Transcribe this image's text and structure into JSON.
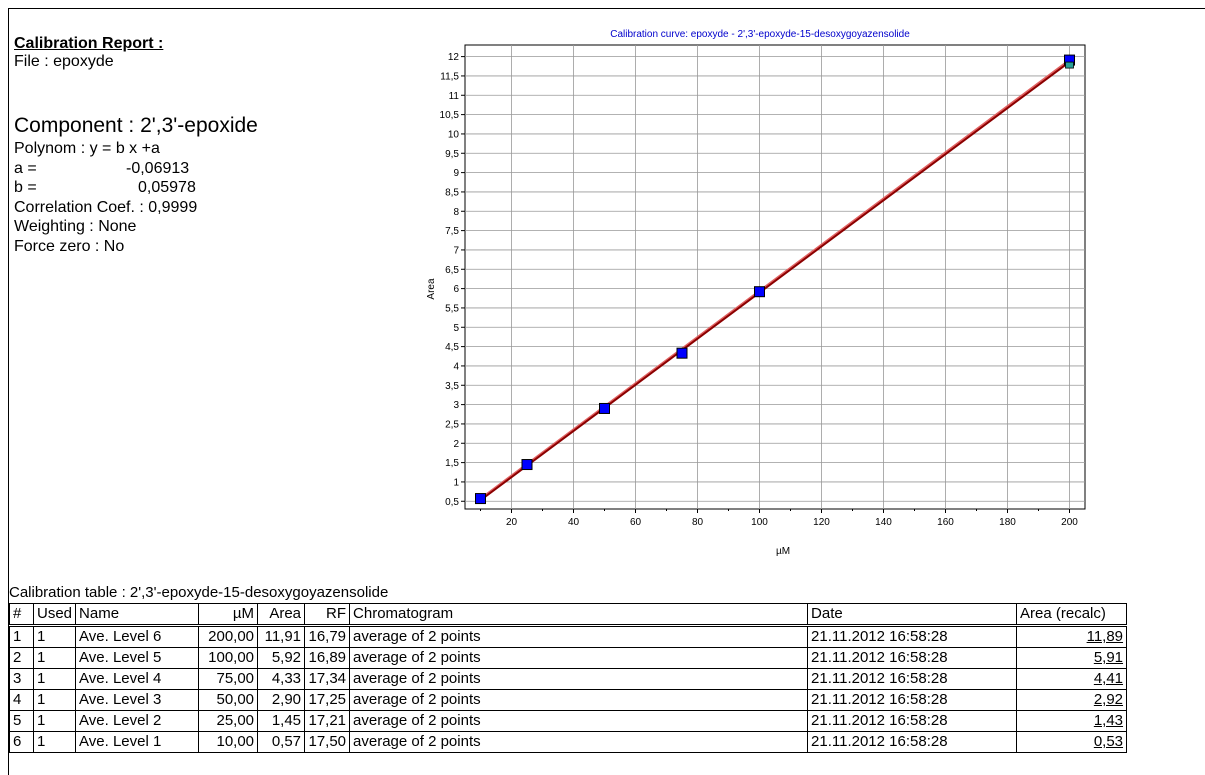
{
  "report": {
    "title": "Calibration Report :",
    "file": "File : epoxyde",
    "component": "Component : 2',3'-epoxide",
    "polynom": "Polynom : y = b x +a",
    "a_label": "a =",
    "a_value": "-0,06913",
    "b_label": "b =",
    "b_value": "0,05978",
    "correlation": "Correlation Coef. :  0,9999",
    "weighting": "Weighting : None",
    "force_zero": "Force zero : No"
  },
  "chart_data": {
    "type": "scatter",
    "title": "Calibration curve: epoxyde - 2',3'-epoxyde-15-desoxygoyazensolide",
    "xlabel": "µM",
    "ylabel": "Area",
    "xlim": [
      5,
      205
    ],
    "ylim": [
      0.3,
      12.3
    ],
    "x_ticks": [
      20,
      40,
      60,
      80,
      100,
      120,
      140,
      160,
      180,
      200
    ],
    "y_ticks": [
      0.5,
      1,
      1.5,
      2,
      2.5,
      3,
      3.5,
      4,
      4.5,
      5,
      5.5,
      6,
      6.5,
      7,
      7.5,
      8,
      8.5,
      9,
      9.5,
      10,
      10.5,
      11,
      11.5,
      12
    ],
    "y_tick_labels": [
      "0,5",
      "1",
      "1,5",
      "2",
      "2,5",
      "3",
      "3,5",
      "4",
      "4,5",
      "5",
      "5,5",
      "6",
      "6,5",
      "7",
      "7,5",
      "8",
      "8,5",
      "9",
      "9,5",
      "10",
      "10,5",
      "11",
      "11,5",
      "12"
    ],
    "points": [
      {
        "x": 10,
        "y": 0.57
      },
      {
        "x": 25,
        "y": 1.45
      },
      {
        "x": 50,
        "y": 2.9
      },
      {
        "x": 75,
        "y": 4.33
      },
      {
        "x": 100,
        "y": 5.92
      },
      {
        "x": 200,
        "y": 11.91
      }
    ],
    "fit": {
      "a": -0.06913,
      "b": 0.05978,
      "x_range": [
        10,
        200
      ]
    },
    "grid": true,
    "colors": {
      "title": "#0000cc",
      "point": "#0000ff",
      "fit": "#8b0000",
      "fit_shadow": "#e06060",
      "grid": "#999999"
    }
  },
  "table": {
    "caption": "Calibration table : 2',3'-epoxyde-15-desoxygoyazensolide",
    "headers": [
      "#",
      "Used",
      "Name",
      "µM",
      "Area",
      "RF",
      "Chromatogram",
      "Date",
      "Area (recalc)"
    ],
    "rows": [
      [
        "1",
        "1",
        "Ave. Level 6",
        "200,00",
        "11,91",
        "16,79",
        "average of 2 points",
        "21.11.2012 16:58:28",
        "11,89"
      ],
      [
        "2",
        "1",
        "Ave. Level 5",
        "100,00",
        "5,92",
        "16,89",
        "average of 2 points",
        "21.11.2012 16:58:28",
        "5,91"
      ],
      [
        "3",
        "1",
        "Ave. Level 4",
        "75,00",
        "4,33",
        "17,34",
        "average of 2 points",
        "21.11.2012 16:58:28",
        "4,41"
      ],
      [
        "4",
        "1",
        "Ave. Level 3",
        "50,00",
        "2,90",
        "17,25",
        "average of 2 points",
        "21.11.2012 16:58:28",
        "2,92"
      ],
      [
        "5",
        "1",
        "Ave. Level 2",
        "25,00",
        "1,45",
        "17,21",
        "average of 2 points",
        "21.11.2012 16:58:28",
        "1,43"
      ],
      [
        "6",
        "1",
        "Ave. Level 1",
        "10,00",
        "0,57",
        "17,50",
        "average of 2 points",
        "21.11.2012 16:58:28",
        "0,53"
      ]
    ]
  }
}
